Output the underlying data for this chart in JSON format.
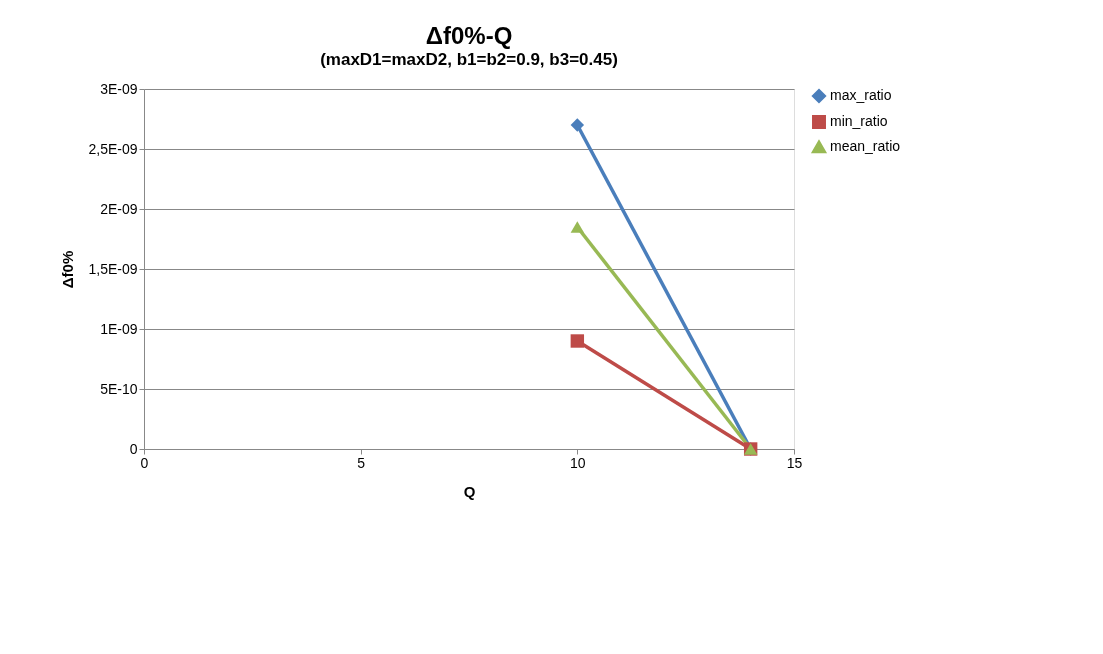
{
  "chart_data": {
    "type": "line",
    "title": "Δf0%-Q",
    "subtitle": "(maxD1=maxD2, b1=b2=0.9, b3=0.45)",
    "xlabel": "Q",
    "ylabel": "Δf0%",
    "x": [
      10,
      14
    ],
    "series": [
      {
        "name": "max_ratio",
        "color": "#4a7ebb",
        "marker": "diamond",
        "values": [
          2.7e-09,
          0
        ]
      },
      {
        "name": "min_ratio",
        "color": "#be4b48",
        "marker": "square",
        "values": [
          9e-10,
          0
        ]
      },
      {
        "name": "mean_ratio",
        "color": "#98b954",
        "marker": "triangle",
        "values": [
          1.85e-09,
          0
        ]
      }
    ],
    "xlim": [
      0,
      15
    ],
    "xticks": [
      0,
      5,
      10,
      15
    ],
    "ylim": [
      0,
      3e-09
    ],
    "yticks": [
      0,
      {
        "value": 5e-10,
        "label": "5E-10"
      },
      {
        "value": 1e-09,
        "label": "1E-09"
      },
      {
        "value": 1.5e-09,
        "label": "1,5E-09"
      },
      {
        "value": 2e-09,
        "label": "2E-09"
      },
      {
        "value": 2.5e-09,
        "label": "2,5E-09"
      },
      {
        "value": 3e-09,
        "label": "3E-09"
      }
    ],
    "grid": "y",
    "legend": "right",
    "line_style": "solid"
  }
}
